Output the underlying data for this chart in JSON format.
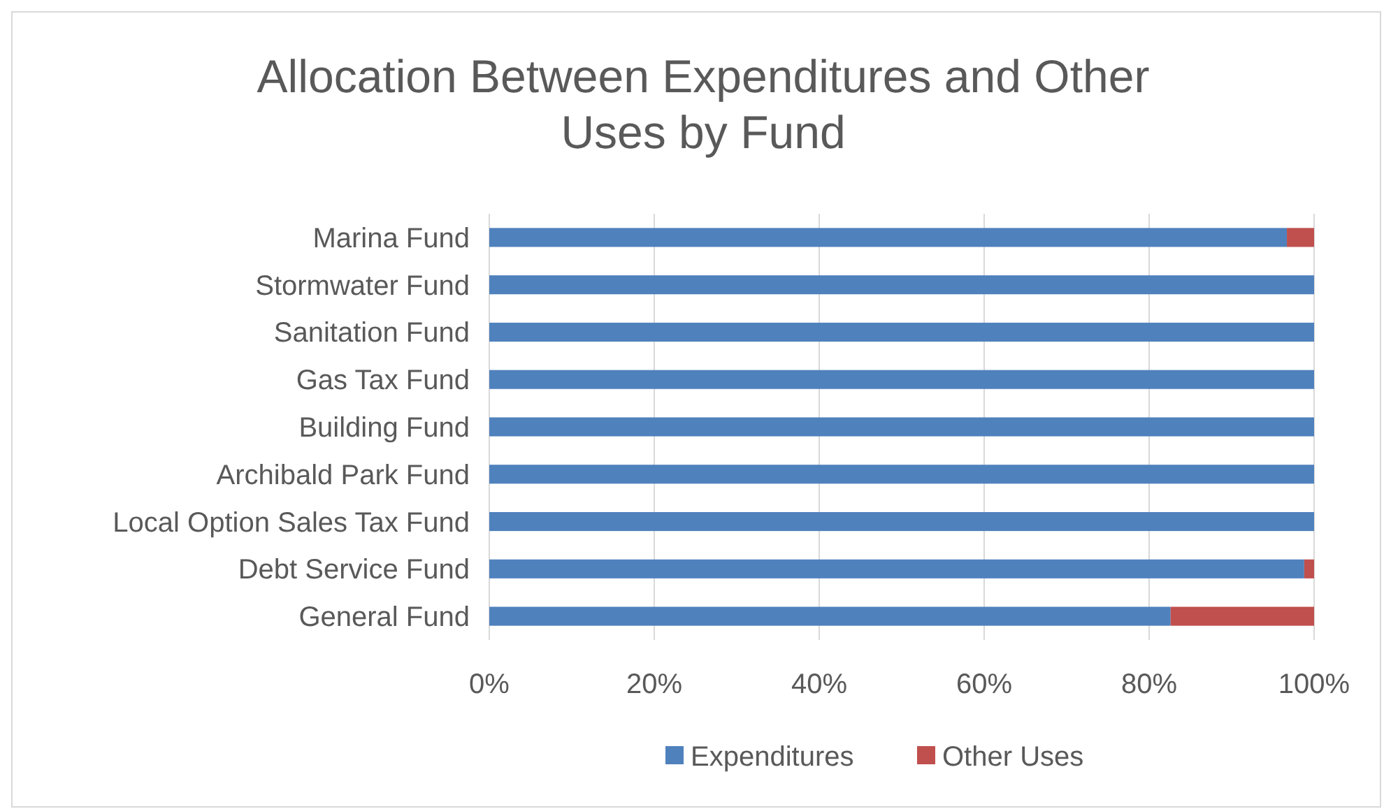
{
  "chart_data": {
    "type": "bar",
    "title": "Allocation Between Expenditures and Other Uses by Fund",
    "orientation": "horizontal",
    "stacked": true,
    "categories": [
      "Marina Fund",
      "Stormwater Fund",
      "Sanitation Fund",
      "Gas Tax Fund",
      "Building Fund",
      "Archibald Park Fund",
      "Local Option Sales Tax Fund",
      "Debt Service Fund",
      "General Fund"
    ],
    "series": [
      {
        "name": "Expenditures",
        "color": "#4f81bd",
        "values": [
          96.7,
          100,
          100,
          100,
          100,
          100,
          100,
          98.8,
          82.6
        ]
      },
      {
        "name": "Other Uses",
        "color": "#c0504d",
        "values": [
          3.3,
          0,
          0,
          0,
          0,
          0,
          0,
          1.2,
          17.4
        ]
      }
    ],
    "xlim": [
      0,
      100
    ],
    "xticks": [
      {
        "value": 0,
        "label": "0%"
      },
      {
        "value": 20,
        "label": "20%"
      },
      {
        "value": 40,
        "label": "40%"
      },
      {
        "value": 60,
        "label": "60%"
      },
      {
        "value": 80,
        "label": "80%"
      },
      {
        "value": 100,
        "label": "100%"
      }
    ],
    "grid": "x",
    "legend": "bottom"
  }
}
